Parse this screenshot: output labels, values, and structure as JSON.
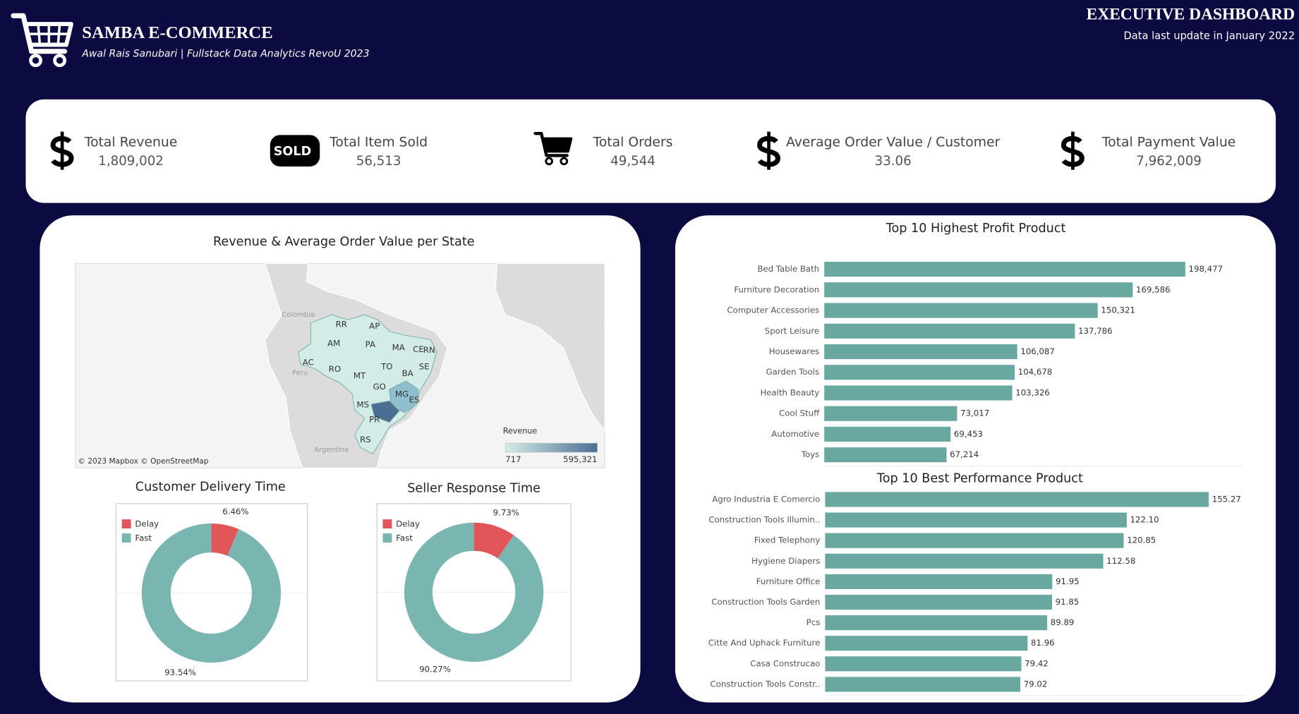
{
  "header": {
    "title": "SAMBA E-COMMERCE",
    "subtitle": "Awal Rais Sanubari | Fullstack Data Analytics RevoU 2023",
    "dashboard_title": "EXECUTIVE DASHBOARD",
    "update_note": "Data last update in January 2022"
  },
  "kpis": [
    {
      "label": "Total Revenue",
      "value": "1,809,002"
    },
    {
      "label": "Total Item Sold",
      "value": "56,513",
      "badge": "SOLD"
    },
    {
      "label": "Total Orders",
      "value": "49,544"
    },
    {
      "label": "Average Order Value / Customer",
      "value": "33.06"
    },
    {
      "label": "Total Payment Value",
      "value": "7,962,009"
    }
  ],
  "chart_data": [
    {
      "type": "map",
      "title": "Revenue & Average Order Value per State",
      "attribution": "© 2023 Mapbox  © OpenStreetMap",
      "countries": [
        "Colombia",
        "Peru",
        "Argentina"
      ],
      "regions": [
        "RR",
        "AP",
        "AM",
        "PA",
        "MA",
        "CE",
        "RN",
        "AC",
        "RO",
        "TO",
        "SE",
        "BA",
        "MT",
        "GO",
        "MG",
        "ES",
        "MS",
        "PR",
        "RS"
      ],
      "legend_title": "Revenue",
      "color_range": [
        {
          "value": 717,
          "label": "717"
        },
        {
          "value": 595321,
          "label": "595,321"
        }
      ],
      "colors": [
        "#d4ece8",
        "#4b6f93"
      ]
    },
    {
      "type": "donut",
      "title": "Customer Delivery Time",
      "categories": [
        "Delay",
        "Fast"
      ],
      "values": [
        6.46,
        93.54
      ],
      "value_labels": [
        "6.46%",
        "93.54%"
      ],
      "colors": [
        "#e15759",
        "#79b6b1"
      ]
    },
    {
      "type": "donut",
      "title": "Seller Response Time",
      "categories": [
        "Delay",
        "Fast"
      ],
      "values": [
        9.73,
        90.27
      ],
      "value_labels": [
        "9.73%",
        "90.27%"
      ],
      "colors": [
        "#e15759",
        "#79b6b1"
      ]
    },
    {
      "type": "hbar",
      "title": "Top 10 Highest Profit Product",
      "categories": [
        "Bed Table Bath",
        "Furniture Decoration",
        "Computer Accessories",
        "Sport Leisure",
        "Housewares",
        "Garden Tools",
        "Health Beauty",
        "Cool Stuff",
        "Automotive",
        "Toys"
      ],
      "values": [
        198477,
        169586,
        150321,
        137786,
        106087,
        104678,
        103326,
        73017,
        69453,
        67214
      ],
      "value_labels": [
        "198,477",
        "169,586",
        "150,321",
        "137,786",
        "106,087",
        "104,678",
        "103,326",
        "73,017",
        "69,453",
        "67,214"
      ],
      "color": "#68a8a1",
      "xlim": [
        0,
        230000
      ]
    },
    {
      "type": "hbar",
      "title": "Top 10 Best Performance Product",
      "categories": [
        "Agro Industria E Comercio",
        "Construction Tools Illumin..",
        "Fixed Telephony",
        "Hygiene Diapers",
        "Furniture Office",
        "Construction Tools Garden",
        "Pcs",
        "Citte And Uphack Furniture",
        "Casa Construcao",
        "Construction Tools Constr.."
      ],
      "values": [
        155.27,
        122.1,
        120.85,
        112.58,
        91.95,
        91.85,
        89.89,
        81.96,
        79.42,
        79.02
      ],
      "value_labels": [
        "155.27",
        "122.10",
        "120.85",
        "112.58",
        "91.95",
        "91.85",
        "89.89",
        "81.96",
        "79.42",
        "79.02"
      ],
      "color": "#68a8a1",
      "xlim": [
        0,
        170
      ]
    }
  ]
}
